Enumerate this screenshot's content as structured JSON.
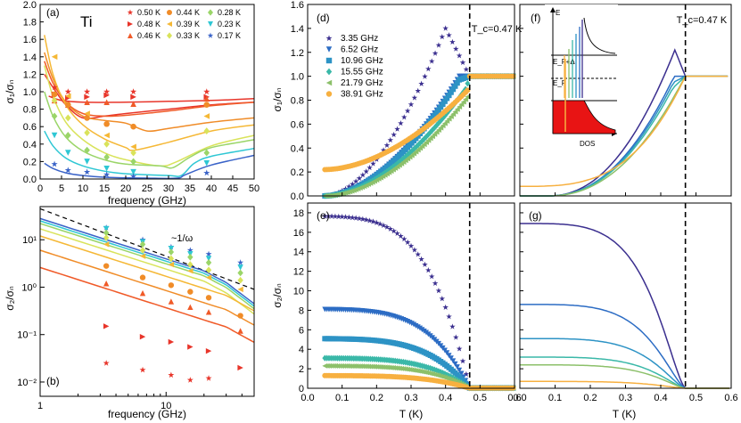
{
  "colors": {
    "T050": "#e8352a",
    "T048": "#e8352a",
    "T046": "#f05a28",
    "T044": "#f08c28",
    "T039": "#f5b836",
    "T033": "#d9e35a",
    "T028": "#9ad568",
    "T023": "#2ec7d4",
    "T017": "#3a63c8",
    "f335": "#3b2f8f",
    "f652": "#2c6cc4",
    "f1096": "#2d93c5",
    "f1555": "#3ab8a8",
    "f2179": "#8cc06a",
    "f3891": "#f7b040"
  },
  "chart_data": [
    {
      "id": "a",
      "type": "scatter",
      "panel_label": "(a)",
      "annotation": "Ti",
      "xlabel": "frequency (GHz)",
      "ylabel": "σ₁/σₙ",
      "xlim": [
        0,
        50
      ],
      "ylim": [
        0,
        2.0
      ],
      "xticks": [
        0,
        5,
        10,
        15,
        20,
        25,
        30,
        35,
        40,
        45,
        50
      ],
      "yticks": [
        0.0,
        0.2,
        0.4,
        0.6,
        0.8,
        1.0,
        1.2,
        1.4,
        1.6,
        1.8,
        2.0
      ],
      "series": [
        {
          "name": "0.50 K",
          "marker": "star",
          "color_key": "T050",
          "points": [
            [
              3.35,
              1.05
            ],
            [
              6.52,
              1.0
            ],
            [
              10.96,
              1.0
            ],
            [
              15.55,
              1.0
            ],
            [
              21.79,
              1.0
            ],
            [
              38.91,
              1.0
            ]
          ],
          "curve": [
            [
              2,
              0.95
            ],
            [
              5,
              0.9
            ],
            [
              10,
              0.88
            ],
            [
              20,
              0.88
            ],
            [
              30,
              0.89
            ],
            [
              40,
              0.9
            ],
            [
              50,
              0.92
            ]
          ]
        },
        {
          "name": "0.48 K",
          "marker": "tri-right",
          "color_key": "T048",
          "points": [
            [
              3.35,
              0.97
            ],
            [
              6.52,
              0.93
            ],
            [
              10.96,
              0.94
            ],
            [
              15.55,
              0.96
            ],
            [
              21.79,
              0.94
            ],
            [
              38.91,
              0.94
            ]
          ],
          "curve": [
            [
              1,
              1.2
            ],
            [
              3,
              1.05
            ],
            [
              6,
              0.85
            ],
            [
              10,
              0.7
            ],
            [
              15,
              0.72
            ],
            [
              20,
              0.75
            ],
            [
              30,
              0.8
            ],
            [
              40,
              0.85
            ],
            [
              50,
              0.88
            ]
          ]
        },
        {
          "name": "0.46 K",
          "marker": "tri-up",
          "color_key": "T046",
          "points": [
            [
              3.35,
              0.9
            ],
            [
              6.52,
              0.85
            ],
            [
              10.96,
              0.88
            ],
            [
              15.55,
              0.88
            ],
            [
              21.79,
              0.86
            ],
            [
              38.91,
              0.92
            ]
          ],
          "curve": [
            [
              1,
              1.35
            ],
            [
              3,
              1.1
            ],
            [
              6,
              0.88
            ],
            [
              10,
              0.75
            ],
            [
              15,
              0.72
            ],
            [
              20,
              0.73
            ],
            [
              30,
              0.78
            ],
            [
              40,
              0.84
            ],
            [
              50,
              0.88
            ]
          ]
        },
        {
          "name": "0.44 K",
          "marker": "circle",
          "color_key": "T044",
          "points": [
            [
              3.35,
              0.97
            ],
            [
              6.52,
              0.85
            ],
            [
              10.96,
              0.7
            ],
            [
              15.55,
              0.63
            ],
            [
              21.79,
              0.6
            ],
            [
              38.91,
              0.85
            ]
          ],
          "curve": [
            [
              1,
              1.45
            ],
            [
              3,
              1.15
            ],
            [
              6,
              0.88
            ],
            [
              10,
              0.72
            ],
            [
              15,
              0.67
            ],
            [
              20,
              0.64
            ],
            [
              25,
              0.55
            ],
            [
              30,
              0.58
            ],
            [
              40,
              0.65
            ],
            [
              50,
              0.7
            ]
          ]
        },
        {
          "name": "0.39 K",
          "marker": "tri-left",
          "color_key": "T039",
          "points": [
            [
              3.35,
              1.4
            ],
            [
              6.52,
              0.95
            ],
            [
              10.96,
              0.75
            ],
            [
              15.55,
              0.5
            ],
            [
              21.79,
              0.37
            ],
            [
              38.91,
              0.72
            ]
          ],
          "curve": [
            [
              1,
              1.65
            ],
            [
              3,
              1.2
            ],
            [
              6,
              0.85
            ],
            [
              10,
              0.62
            ],
            [
              15,
              0.46
            ],
            [
              20,
              0.36
            ],
            [
              22,
              0.33
            ],
            [
              30,
              0.42
            ],
            [
              40,
              0.55
            ],
            [
              50,
              0.62
            ]
          ]
        },
        {
          "name": "0.33 K",
          "marker": "diamond",
          "color_key": "T033",
          "points": [
            [
              3.35,
              0.9
            ],
            [
              6.52,
              0.7
            ],
            [
              10.96,
              0.53
            ],
            [
              15.55,
              0.4
            ],
            [
              21.79,
              0.3
            ],
            [
              38.91,
              0.55
            ]
          ],
          "curve": [
            [
              1,
              1.3
            ],
            [
              3,
              0.95
            ],
            [
              6,
              0.65
            ],
            [
              10,
              0.45
            ],
            [
              15,
              0.3
            ],
            [
              20,
              0.22
            ],
            [
              28,
              0.15
            ],
            [
              32,
              0.2
            ],
            [
              40,
              0.38
            ],
            [
              50,
              0.5
            ]
          ]
        },
        {
          "name": "0.28 K",
          "marker": "diamond",
          "color_key": "T028",
          "points": [
            [
              3.35,
              0.72
            ],
            [
              6.52,
              0.5
            ],
            [
              10.96,
              0.33
            ],
            [
              15.55,
              0.25
            ],
            [
              21.79,
              0.2
            ],
            [
              38.91,
              0.3
            ]
          ],
          "curve": [
            [
              1,
              1.0
            ],
            [
              3,
              0.72
            ],
            [
              6,
              0.48
            ],
            [
              10,
              0.32
            ],
            [
              15,
              0.22
            ],
            [
              20,
              0.17
            ],
            [
              28,
              0.15
            ],
            [
              31,
              0.13
            ],
            [
              35,
              0.25
            ],
            [
              40,
              0.36
            ],
            [
              50,
              0.45
            ]
          ]
        },
        {
          "name": "0.23 K",
          "marker": "tri-down",
          "color_key": "T023",
          "points": [
            [
              3.35,
              0.5
            ],
            [
              6.52,
              0.3
            ],
            [
              10.96,
              0.2
            ],
            [
              15.55,
              0.12
            ],
            [
              21.79,
              0.08
            ],
            [
              38.91,
              0.18
            ]
          ],
          "curve": [
            [
              1,
              0.55
            ],
            [
              3,
              0.38
            ],
            [
              6,
              0.24
            ],
            [
              10,
              0.15
            ],
            [
              15,
              0.09
            ],
            [
              20,
              0.06
            ],
            [
              30,
              0.04
            ],
            [
              33,
              0.04
            ],
            [
              36,
              0.18
            ],
            [
              40,
              0.26
            ],
            [
              50,
              0.35
            ]
          ]
        },
        {
          "name": "0.17 K",
          "marker": "star",
          "color_key": "T017",
          "points": [
            [
              3.35,
              0.17
            ],
            [
              6.52,
              0.1
            ],
            [
              10.96,
              0.08
            ],
            [
              15.55,
              0.05
            ],
            [
              21.79,
              0.03
            ],
            [
              38.91,
              0.07
            ]
          ],
          "curve": [
            [
              1,
              0.18
            ],
            [
              3,
              0.12
            ],
            [
              6,
              0.07
            ],
            [
              10,
              0.04
            ],
            [
              15,
              0.02
            ],
            [
              25,
              0.01
            ],
            [
              32,
              0.01
            ],
            [
              34,
              0.05
            ],
            [
              40,
              0.16
            ],
            [
              50,
              0.27
            ]
          ]
        }
      ]
    },
    {
      "id": "b",
      "type": "scatter",
      "panel_label": "(b)",
      "annotation": "~1/ω",
      "xlabel": "frequency (GHz)",
      "ylabel": "σ₂/σₙ",
      "xscale": "log",
      "yscale": "log",
      "xlim": [
        1,
        50
      ],
      "ylim": [
        0.005,
        50
      ],
      "xticks": [
        1,
        10
      ],
      "xticklabels": [
        "1",
        "10"
      ],
      "yticks": [
        0.01,
        0.1,
        1,
        10
      ],
      "yticklabels": [
        "10⁻²",
        "10⁻¹",
        "10⁰",
        "10¹"
      ]
    },
    {
      "id": "d",
      "type": "scatter",
      "panel_label": "(d)",
      "annotation": "T_c=0.47 K",
      "xlabel": "",
      "ylabel": "σ₁/σₙ",
      "xlim": [
        0,
        0.6
      ],
      "ylim": [
        0,
        1.6
      ],
      "yticks": [
        0.0,
        0.2,
        0.4,
        0.6,
        0.8,
        1.0,
        1.2,
        1.4,
        1.6
      ],
      "tc": 0.47,
      "series": [
        {
          "name": "3.35 GHz",
          "marker": "star",
          "color_key": "f335"
        },
        {
          "name": "6.52 GHz",
          "marker": "tri-down",
          "color_key": "f652"
        },
        {
          "name": "10.96 GHz",
          "marker": "square",
          "color_key": "f1096"
        },
        {
          "name": "15.55 GHz",
          "marker": "diamond",
          "color_key": "f1555"
        },
        {
          "name": "21.79 GHz",
          "marker": "tri-left",
          "color_key": "f2179"
        },
        {
          "name": "38.91 GHz",
          "marker": "circle",
          "color_key": "f3891"
        }
      ]
    },
    {
      "id": "e",
      "type": "scatter",
      "panel_label": "(e)",
      "xlabel": "T (K)",
      "ylabel": "σ₂/σₙ",
      "xlim": [
        0,
        0.6
      ],
      "ylim": [
        0,
        19
      ],
      "xticks": [
        0.0,
        0.1,
        0.2,
        0.3,
        0.4,
        0.5,
        0.6
      ],
      "yticks": [
        0,
        2,
        4,
        6,
        8,
        10,
        12,
        14,
        16,
        18
      ],
      "tc": 0.47
    },
    {
      "id": "f",
      "type": "line",
      "panel_label": "(f)",
      "annotation": "T_c=0.47 K",
      "inset_labels": {
        "e": "E",
        "ef_plus": "E_F+Δ",
        "ef": "E_F",
        "ef_minus": "E_F-Δ",
        "dos": "DOS"
      },
      "xlim": [
        0,
        0.6
      ],
      "ylim": [
        0,
        1.6
      ],
      "tc": 0.47
    },
    {
      "id": "g",
      "type": "line",
      "panel_label": "(g)",
      "xlabel": "T (K)",
      "xlim": [
        0,
        0.6
      ],
      "ylim": [
        0,
        19
      ],
      "xticks": [
        0.0,
        0.1,
        0.2,
        0.3,
        0.4,
        0.5,
        0.6
      ],
      "tc": 0.47
    }
  ]
}
